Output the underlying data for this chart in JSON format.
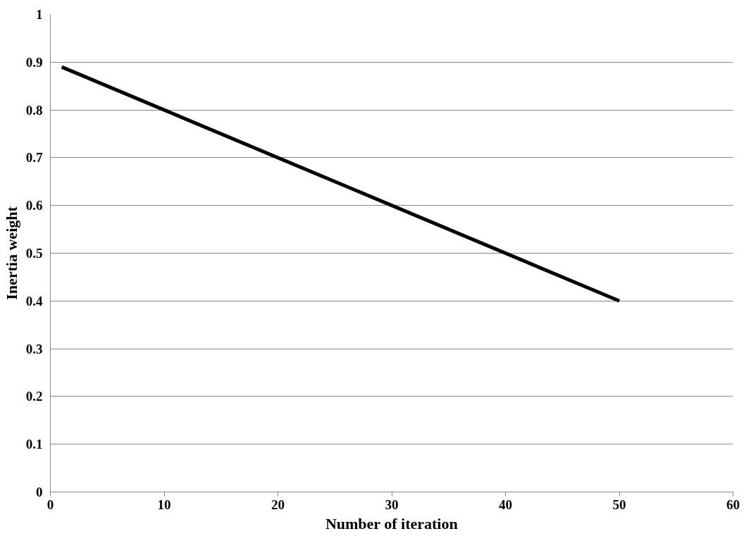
{
  "chart_data": {
    "type": "line",
    "xlabel": "Number of iteration",
    "ylabel": "Inertia weight",
    "x": [
      1,
      50
    ],
    "series": [
      {
        "color": "#000000",
        "values": [
          0.89,
          0.4
        ]
      }
    ],
    "xlim": [
      0,
      60
    ],
    "xticks": [
      0,
      10,
      20,
      30,
      40,
      50,
      60
    ],
    "ylim": [
      0,
      1
    ],
    "yticks": [
      0,
      0.1,
      0.2,
      0.3,
      0.4,
      0.5,
      0.6,
      0.7,
      0.8,
      0.9,
      1
    ],
    "grid": "y",
    "marker": "none",
    "line_style": "solid"
  }
}
